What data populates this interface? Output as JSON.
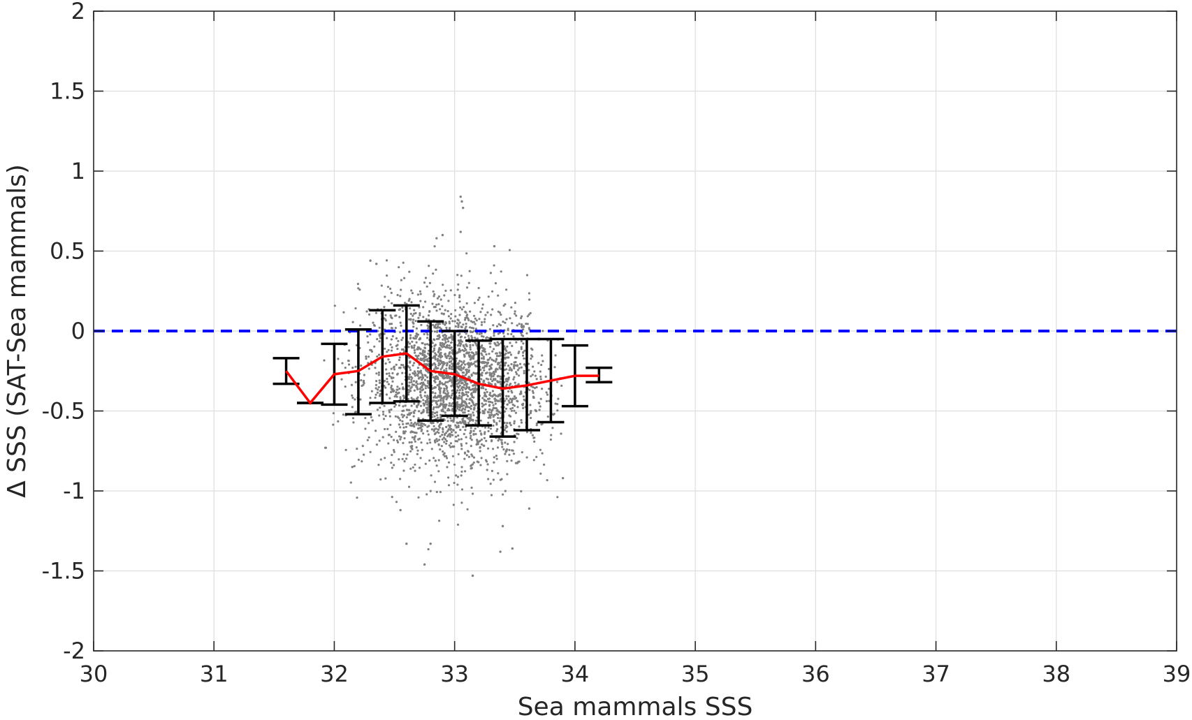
{
  "chart_data": {
    "type": "scatter",
    "title": "",
    "xlabel": "Sea mammals SSS",
    "ylabel": "Δ SSS (SAT-Sea mammals)",
    "xlim": [
      30,
      39
    ],
    "ylim": [
      -2,
      2
    ],
    "xticks": [
      30,
      31,
      32,
      33,
      34,
      35,
      36,
      37,
      38,
      39
    ],
    "xtick_labels": [
      "30",
      "31",
      "32",
      "33",
      "34",
      "35",
      "36",
      "37",
      "38",
      "39"
    ],
    "yticks": [
      -2,
      -1.5,
      -1,
      -0.5,
      0,
      0.5,
      1,
      1.5,
      2
    ],
    "ytick_labels": [
      "-2",
      "-1.5",
      "-1",
      "-0.5",
      "0",
      "0.5",
      "1",
      "1.5",
      "2"
    ],
    "grid": true,
    "legend": "none",
    "colors": {
      "scatter": "#808080",
      "mean_line": "#ff0000",
      "error_bars": "#000000",
      "zero_line": "#0000ff",
      "grid": "#dedede",
      "axes": "#262626"
    },
    "series": [
      {
        "kind": "binned-mean",
        "x": [
          31.6,
          31.8,
          32.0,
          32.2,
          32.4,
          32.6,
          32.8,
          33.0,
          33.2,
          33.4,
          33.6,
          33.8,
          34.0,
          34.2
        ],
        "y": [
          -0.25,
          -0.45,
          -0.27,
          -0.25,
          -0.16,
          -0.14,
          -0.25,
          -0.27,
          -0.33,
          -0.36,
          -0.34,
          -0.31,
          -0.28,
          -0.28
        ],
        "lower": [
          -0.33,
          -0.45,
          -0.46,
          -0.52,
          -0.45,
          -0.44,
          -0.56,
          -0.53,
          -0.59,
          -0.66,
          -0.62,
          -0.57,
          -0.47,
          -0.32
        ],
        "upper": [
          -0.17,
          -0.45,
          -0.08,
          0.01,
          0.13,
          0.16,
          0.06,
          0.0,
          -0.06,
          -0.05,
          -0.05,
          -0.05,
          -0.09,
          -0.23
        ]
      },
      {
        "kind": "reference-line",
        "y": 0,
        "style": "dashed"
      },
      {
        "kind": "scatter-cloud",
        "n_points": 2600,
        "x_center": 33.0,
        "x_spread": 0.38,
        "x_range": [
          31.9,
          33.9
        ],
        "y_center": -0.33,
        "y_spread": 0.26,
        "outliers": [
          {
            "x": 33.05,
            "y": 0.84
          },
          {
            "x": 33.06,
            "y": 0.81
          },
          {
            "x": 33.07,
            "y": 0.77
          },
          {
            "x": 33.05,
            "y": 0.62
          },
          {
            "x": 32.9,
            "y": 0.6
          },
          {
            "x": 32.85,
            "y": 0.58
          },
          {
            "x": 33.33,
            "y": 0.53
          },
          {
            "x": 32.3,
            "y": 0.44
          },
          {
            "x": 32.35,
            "y": 0.42
          },
          {
            "x": 32.8,
            "y": -1.33
          },
          {
            "x": 32.75,
            "y": -1.46
          },
          {
            "x": 33.38,
            "y": -1.38
          },
          {
            "x": 33.48,
            "y": -1.36
          },
          {
            "x": 33.15,
            "y": -1.53
          },
          {
            "x": 32.6,
            "y": -1.33
          },
          {
            "x": 32.55,
            "y": -1.12
          },
          {
            "x": 31.93,
            "y": -0.73
          },
          {
            "x": 33.9,
            "y": -0.92
          },
          {
            "x": 33.4,
            "y": -1.22
          },
          {
            "x": 33.62,
            "y": -1.11
          },
          {
            "x": 32.15,
            "y": -0.85
          }
        ]
      }
    ]
  }
}
